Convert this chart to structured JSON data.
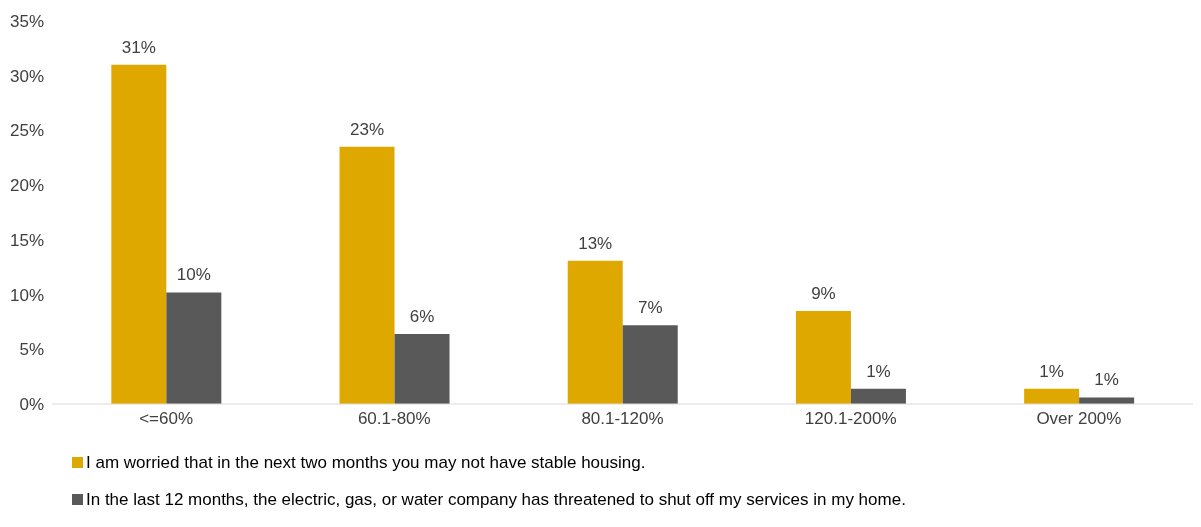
{
  "chart_data": {
    "type": "bar",
    "categories": [
      "<=60%",
      "60.1-80%",
      "80.1-120%",
      "120.1-200%",
      "Over 200%"
    ],
    "series": [
      {
        "name": "I am worried that in the next two months you may not have stable housing.",
        "color": "#dfa800",
        "values": [
          31,
          23.5,
          13.1,
          8.5,
          1.4
        ],
        "value_labels": [
          "31%",
          "23%",
          "13%",
          "9%",
          "1%"
        ]
      },
      {
        "name": "In the last 12 months, the electric, gas, or water company has threatened to shut off my services in my home.",
        "color": "#595959",
        "values": [
          10.2,
          6.4,
          7.2,
          1.4,
          0.6
        ],
        "value_labels": [
          "10%",
          "6%",
          "7%",
          "1%",
          "1%"
        ]
      }
    ],
    "ylim": [
      0,
      35
    ],
    "yticks": [
      {
        "value": 0,
        "label": "0%"
      },
      {
        "value": 5,
        "label": "5%"
      },
      {
        "value": 10,
        "label": "10%"
      },
      {
        "value": 15,
        "label": "15%"
      },
      {
        "value": 20,
        "label": "20%"
      },
      {
        "value": 25,
        "label": "25%"
      },
      {
        "value": 30,
        "label": "30%"
      },
      {
        "value": 35,
        "label": "35%"
      }
    ],
    "grid": false,
    "legend": "bottom"
  }
}
